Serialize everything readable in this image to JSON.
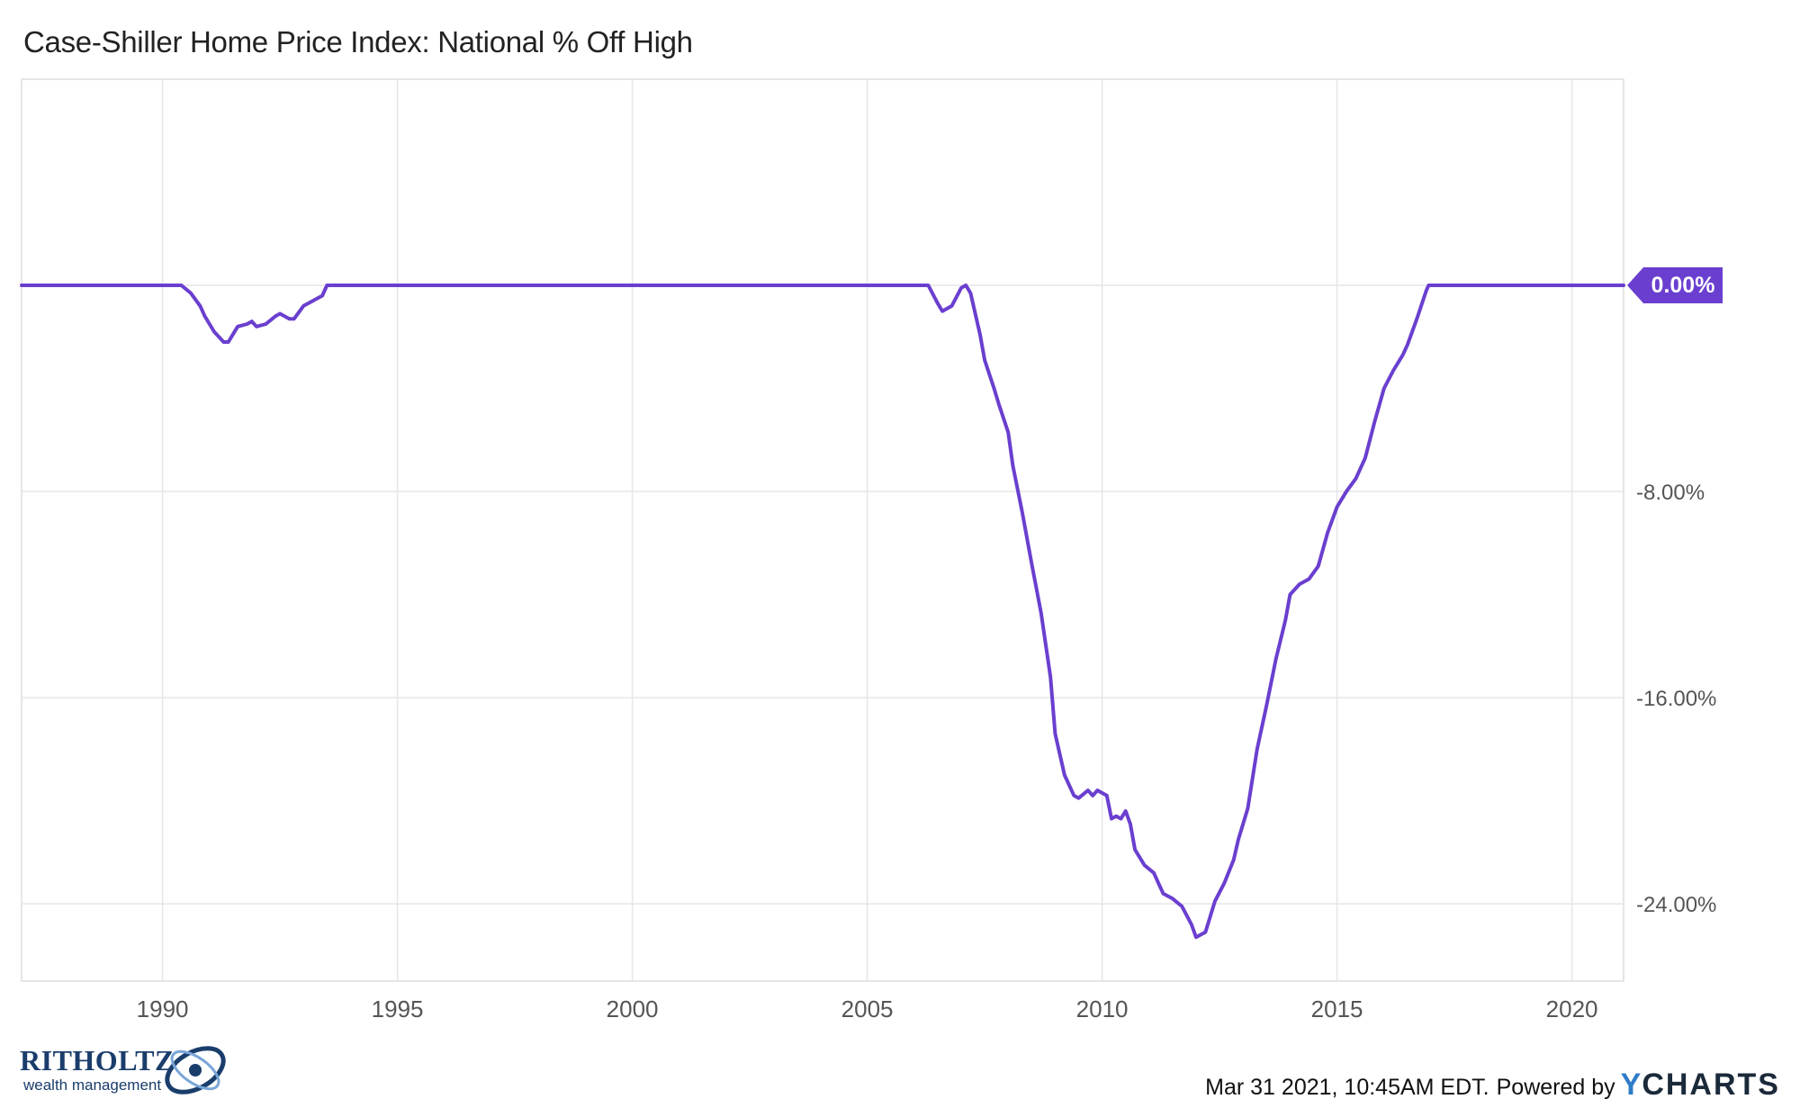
{
  "chart_data": {
    "type": "line",
    "title": "Case-Shiller Home Price Index: National % Off High",
    "x_ticks": [
      "1990",
      "1995",
      "2000",
      "2005",
      "2010",
      "2015",
      "2020"
    ],
    "y_ticks": [
      "0.00%",
      "-8.00%",
      "-16.00%",
      "-24.00%"
    ],
    "x_range": [
      1987.0,
      2021.1
    ],
    "y_range": [
      -27.0,
      8.0
    ],
    "grid": true,
    "series": [
      {
        "color": "#6a3fcf",
        "last_value_label": "0.00%",
        "points": [
          [
            1987.0,
            0.0
          ],
          [
            1990.4,
            0.0
          ],
          [
            1990.6,
            -0.3
          ],
          [
            1990.8,
            -0.8
          ],
          [
            1990.9,
            -1.2
          ],
          [
            1991.1,
            -1.8
          ],
          [
            1991.3,
            -2.2
          ],
          [
            1991.4,
            -2.2
          ],
          [
            1991.6,
            -1.6
          ],
          [
            1991.8,
            -1.5
          ],
          [
            1991.9,
            -1.4
          ],
          [
            1992.0,
            -1.6
          ],
          [
            1992.2,
            -1.5
          ],
          [
            1992.4,
            -1.2
          ],
          [
            1992.5,
            -1.1
          ],
          [
            1992.7,
            -1.3
          ],
          [
            1992.8,
            -1.3
          ],
          [
            1993.0,
            -0.8
          ],
          [
            1993.2,
            -0.6
          ],
          [
            1993.4,
            -0.4
          ],
          [
            1993.5,
            0.0
          ],
          [
            2006.3,
            0.0
          ],
          [
            2006.5,
            -0.7
          ],
          [
            2006.6,
            -1.0
          ],
          [
            2006.8,
            -0.8
          ],
          [
            2007.0,
            -0.1
          ],
          [
            2007.1,
            0.0
          ],
          [
            2007.2,
            -0.3
          ],
          [
            2007.4,
            -1.9
          ],
          [
            2007.5,
            -2.9
          ],
          [
            2007.7,
            -4.0
          ],
          [
            2007.8,
            -4.6
          ],
          [
            2008.0,
            -5.7
          ],
          [
            2008.1,
            -7.0
          ],
          [
            2008.3,
            -8.8
          ],
          [
            2008.5,
            -10.8
          ],
          [
            2008.7,
            -12.7
          ],
          [
            2008.9,
            -15.2
          ],
          [
            2009.0,
            -17.4
          ],
          [
            2009.2,
            -19.0
          ],
          [
            2009.4,
            -19.8
          ],
          [
            2009.5,
            -19.9
          ],
          [
            2009.7,
            -19.6
          ],
          [
            2009.8,
            -19.8
          ],
          [
            2009.9,
            -19.6
          ],
          [
            2010.1,
            -19.8
          ],
          [
            2010.2,
            -20.7
          ],
          [
            2010.3,
            -20.6
          ],
          [
            2010.4,
            -20.7
          ],
          [
            2010.5,
            -20.4
          ],
          [
            2010.6,
            -20.9
          ],
          [
            2010.7,
            -21.9
          ],
          [
            2010.9,
            -22.5
          ],
          [
            2011.1,
            -22.8
          ],
          [
            2011.3,
            -23.6
          ],
          [
            2011.5,
            -23.8
          ],
          [
            2011.7,
            -24.1
          ],
          [
            2011.9,
            -24.8
          ],
          [
            2012.0,
            -25.3
          ],
          [
            2012.2,
            -25.1
          ],
          [
            2012.4,
            -23.9
          ],
          [
            2012.6,
            -23.2
          ],
          [
            2012.8,
            -22.3
          ],
          [
            2012.9,
            -21.5
          ],
          [
            2013.1,
            -20.3
          ],
          [
            2013.3,
            -18.0
          ],
          [
            2013.5,
            -16.3
          ],
          [
            2013.7,
            -14.5
          ],
          [
            2013.9,
            -13.0
          ],
          [
            2014.0,
            -12.0
          ],
          [
            2014.2,
            -11.6
          ],
          [
            2014.4,
            -11.4
          ],
          [
            2014.6,
            -10.9
          ],
          [
            2014.8,
            -9.6
          ],
          [
            2015.0,
            -8.6
          ],
          [
            2015.2,
            -8.0
          ],
          [
            2015.4,
            -7.5
          ],
          [
            2015.6,
            -6.7
          ],
          [
            2015.8,
            -5.3
          ],
          [
            2016.0,
            -4.0
          ],
          [
            2016.2,
            -3.3
          ],
          [
            2016.4,
            -2.7
          ],
          [
            2016.5,
            -2.3
          ],
          [
            2016.7,
            -1.3
          ],
          [
            2016.9,
            -0.2
          ],
          [
            2016.95,
            0.0
          ],
          [
            2021.1,
            0.0
          ]
        ]
      }
    ]
  },
  "logo": {
    "name": "RITHOLTZ",
    "tagline": "wealth management"
  },
  "footer": {
    "timestamp": "Mar 31 2021, 10:45AM EDT.",
    "powered_by": "Powered by",
    "brand_y": "Y",
    "brand_rest": "CHARTS"
  }
}
